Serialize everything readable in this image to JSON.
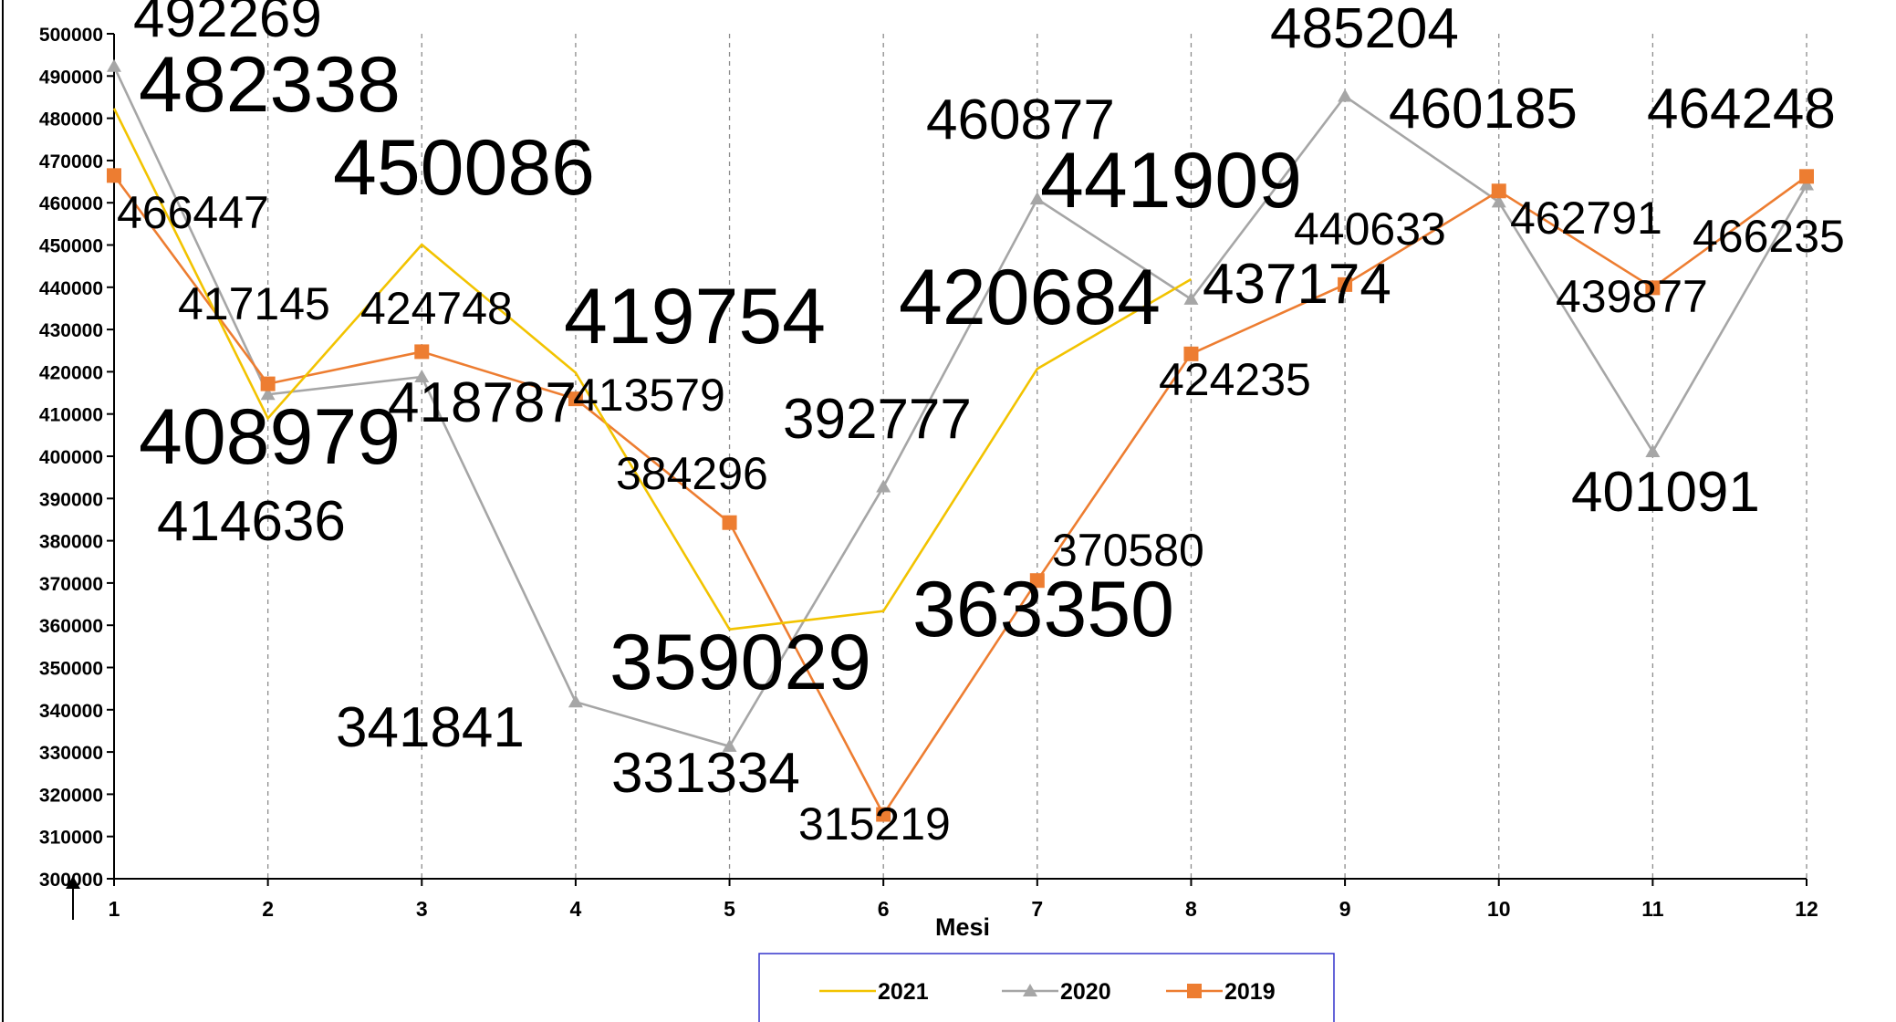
{
  "chart_data": {
    "type": "line",
    "title": "",
    "xlabel": "Mesi",
    "ylabel": "",
    "x": [
      1,
      2,
      3,
      4,
      5,
      6,
      7,
      8,
      9,
      10,
      11,
      12
    ],
    "ylim": [
      300000,
      500000
    ],
    "yticks": [
      "300000",
      "310000",
      "320000",
      "330000",
      "340000",
      "350000",
      "360000",
      "370000",
      "380000",
      "390000",
      "400000",
      "410000",
      "420000",
      "430000",
      "440000",
      "450000",
      "460000",
      "470000",
      "480000",
      "490000",
      "500000"
    ],
    "grid": "vertical-dashed",
    "legend_position": "bottom",
    "series": [
      {
        "name": "2021",
        "color": "#F2C300",
        "marker": "none",
        "values": [
          482338,
          408979,
          450086,
          419754,
          359029,
          363350,
          420684,
          441909,
          null,
          null,
          null,
          null
        ]
      },
      {
        "name": "2020",
        "color": "#A6A6A6",
        "marker": "triangle",
        "values": [
          492269,
          414636,
          418787,
          341841,
          331334,
          392777,
          460877,
          437174,
          485204,
          460185,
          401091,
          464248
        ]
      },
      {
        "name": "2019",
        "color": "#ED7D31",
        "marker": "square",
        "values": [
          466447,
          417145,
          424748,
          413579,
          384296,
          315219,
          370580,
          424235,
          440633,
          462791,
          439877,
          466235
        ]
      }
    ]
  },
  "data_labels": [
    {
      "text": "492269",
      "size": 62
    },
    {
      "text": "482338",
      "size": 86
    },
    {
      "text": "466447",
      "size": 50
    },
    {
      "text": "417145",
      "size": 50
    },
    {
      "text": "408979",
      "size": 86
    },
    {
      "text": "414636",
      "size": 62
    },
    {
      "text": "450086",
      "size": 86
    },
    {
      "text": "424748",
      "size": 50
    },
    {
      "text": "418787",
      "size": 62
    },
    {
      "text": "419754",
      "size": 86
    },
    {
      "text": "413579",
      "size": 50
    },
    {
      "text": "341841",
      "size": 62
    },
    {
      "text": "384296",
      "size": 50
    },
    {
      "text": "359029",
      "size": 86
    },
    {
      "text": "331334",
      "size": 62
    },
    {
      "text": "392777",
      "size": 62
    },
    {
      "text": "315219",
      "size": 50
    },
    {
      "text": "460877",
      "size": 62
    },
    {
      "text": "420684",
      "size": 86
    },
    {
      "text": "370580",
      "size": 50
    },
    {
      "text": "363350",
      "size": 86
    },
    {
      "text": "441909",
      "size": 86
    },
    {
      "text": "437174",
      "size": 62
    },
    {
      "text": "424235",
      "size": 50
    },
    {
      "text": "485204",
      "size": 62
    },
    {
      "text": "440633",
      "size": 50
    },
    {
      "text": "460185",
      "size": 62
    },
    {
      "text": "462791",
      "size": 50
    },
    {
      "text": "439877",
      "size": 50
    },
    {
      "text": "401091",
      "size": 62
    },
    {
      "text": "464248",
      "size": 62
    },
    {
      "text": "466235",
      "size": 50
    }
  ]
}
